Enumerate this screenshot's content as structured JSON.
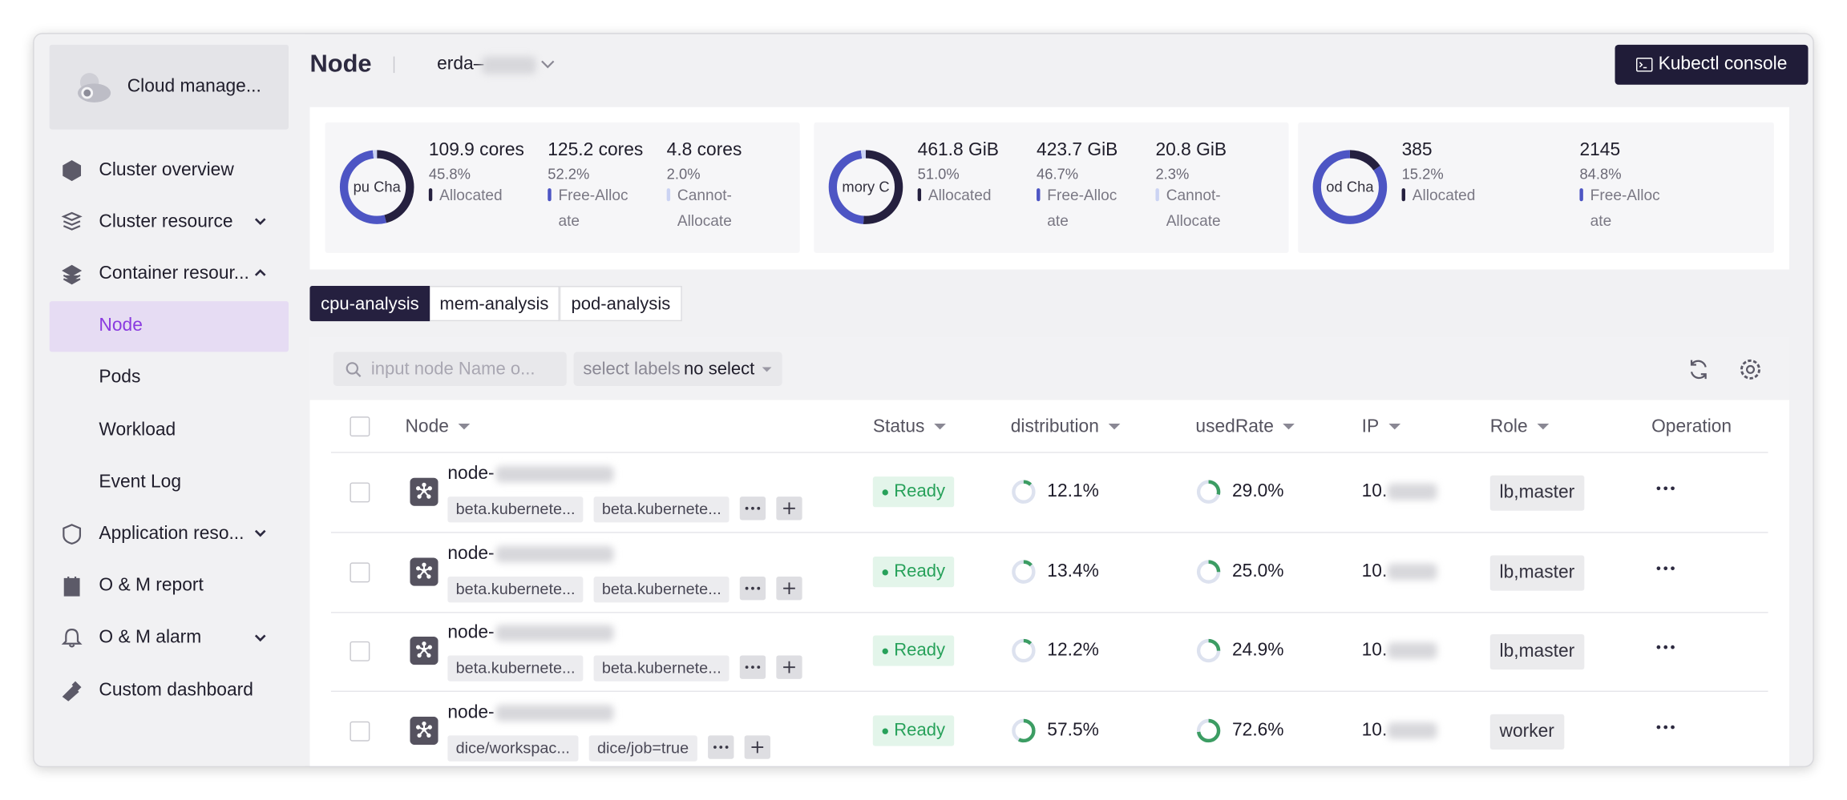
{
  "sidebar": {
    "title": "Cloud manage...",
    "items": [
      {
        "label": "Cluster overview"
      },
      {
        "label": "Cluster resource"
      },
      {
        "label": "Container resour...",
        "children": [
          "Node",
          "Pods",
          "Workload",
          "Event Log"
        ]
      },
      {
        "label": "Application reso..."
      },
      {
        "label": "O & M report"
      },
      {
        "label": "O & M alarm"
      },
      {
        "label": "Custom dashboard"
      }
    ]
  },
  "header": {
    "title": "Node",
    "cluster": "erda–",
    "button": "Kubectl console"
  },
  "summary": [
    {
      "chart_label": "pu Cha",
      "stats": [
        {
          "amount": "109.9 cores",
          "percent": "45.8%",
          "label": "Allocated"
        },
        {
          "amount": "125.2 cores",
          "percent": "52.2%",
          "label": "Free-Allocate"
        },
        {
          "amount": "4.8 cores",
          "percent": "2.0%",
          "label": "Cannot-Allocate"
        }
      ]
    },
    {
      "chart_label": "mory C",
      "stats": [
        {
          "amount": "461.8 GiB",
          "percent": "51.0%",
          "label": "Allocated"
        },
        {
          "amount": "423.7 GiB",
          "percent": "46.7%",
          "label": "Free-Allocate"
        },
        {
          "amount": "20.8 GiB",
          "percent": "2.3%",
          "label": "Cannot-Allocate"
        }
      ]
    },
    {
      "chart_label": "od Cha",
      "stats": [
        {
          "amount": "385",
          "percent": "15.2%",
          "label": "Allocated"
        },
        {
          "amount": "2145",
          "percent": "84.8%",
          "label": "Free-Allocate"
        }
      ]
    }
  ],
  "tabs": [
    "cpu-analysis",
    "mem-analysis",
    "pod-analysis"
  ],
  "toolbar": {
    "search_placeholder": "input node Name o...",
    "select_label": "select labels",
    "select_value": "no select"
  },
  "table": {
    "columns": [
      "Node",
      "Status",
      "distribution",
      "usedRate",
      "IP",
      "Role",
      "Operation"
    ],
    "rows": [
      {
        "node": "node-",
        "tags": [
          "beta.kubernete...",
          "beta.kubernete..."
        ],
        "status": "Ready",
        "distribution": "12.1%",
        "usedRate": "29.0%",
        "ip": "10.",
        "role": "lb,master"
      },
      {
        "node": "node-",
        "tags": [
          "beta.kubernete...",
          "beta.kubernete..."
        ],
        "status": "Ready",
        "distribution": "13.4%",
        "usedRate": "25.0%",
        "ip": "10.",
        "role": "lb,master"
      },
      {
        "node": "node-",
        "tags": [
          "beta.kubernete...",
          "beta.kubernete..."
        ],
        "status": "Ready",
        "distribution": "12.2%",
        "usedRate": "24.9%",
        "ip": "10.",
        "role": "lb,master"
      },
      {
        "node": "node-",
        "tags": [
          "dice/workspac...",
          "dice/job=true"
        ],
        "status": "Ready",
        "distribution": "57.5%",
        "usedRate": "72.6%",
        "ip": "10.",
        "role": "worker"
      }
    ]
  }
}
